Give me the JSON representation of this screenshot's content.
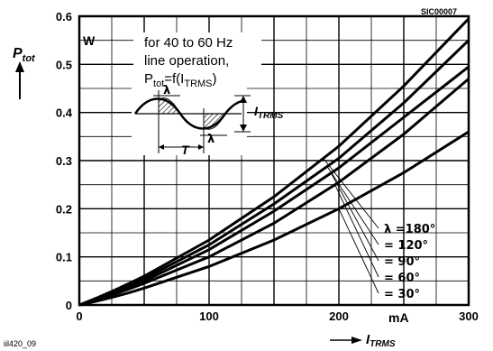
{
  "chart_data": {
    "type": "line",
    "code": "SIC00007",
    "footer_code": "iil420_09",
    "y_label": "P",
    "y_label_sub": "tot",
    "y_unit": "W",
    "x_label": "I",
    "x_label_sub": "TRMS",
    "x_unit": "mA",
    "xlim": [
      0,
      300
    ],
    "ylim": [
      0,
      0.6
    ],
    "x_ticks": [
      {
        "value": 0,
        "label": "0"
      },
      {
        "value": 100,
        "label": "100"
      },
      {
        "value": 200,
        "label": "200"
      },
      {
        "value": 300,
        "label": "300"
      }
    ],
    "y_ticks": [
      {
        "value": 0,
        "label": "0"
      },
      {
        "value": 0.1,
        "label": "0.1"
      },
      {
        "value": 0.2,
        "label": "0.2"
      },
      {
        "value": 0.3,
        "label": "0.3"
      },
      {
        "value": 0.4,
        "label": "0.4"
      },
      {
        "value": 0.5,
        "label": "0.5"
      },
      {
        "value": 0.6,
        "label": "0.6"
      }
    ],
    "annotation_lines": [
      "for 40 to 60 Hz",
      "line operation,"
    ],
    "annotation_formula": {
      "main": "P",
      "sub": "tot",
      "mid": "=f(I",
      "sub2": "TRMS",
      "end": ")"
    },
    "inset_labels": {
      "lambda": "λ",
      "lambda2": "λ",
      "period": "T",
      "current": "I",
      "current_sub": "TRMS"
    },
    "series": [
      {
        "name": "λ =180°",
        "x": [
          0,
          50,
          100,
          150,
          200,
          250,
          300
        ],
        "y": [
          0,
          0.06,
          0.135,
          0.225,
          0.33,
          0.455,
          0.595
        ]
      },
      {
        "name": "= 120°",
        "x": [
          0,
          50,
          100,
          150,
          200,
          250,
          300
        ],
        "y": [
          0,
          0.055,
          0.125,
          0.21,
          0.305,
          0.42,
          0.55
        ]
      },
      {
        "name": "=  90°",
        "x": [
          0,
          50,
          100,
          150,
          200,
          250,
          300
        ],
        "y": [
          0,
          0.05,
          0.115,
          0.195,
          0.285,
          0.39,
          0.495
        ]
      },
      {
        "name": "=  60°",
        "x": [
          0,
          50,
          100,
          150,
          200,
          250,
          300
        ],
        "y": [
          0,
          0.045,
          0.1,
          0.17,
          0.255,
          0.355,
          0.47
        ]
      },
      {
        "name": "=  30°",
        "x": [
          0,
          50,
          100,
          150,
          200,
          250,
          300
        ],
        "y": [
          0,
          0.035,
          0.08,
          0.135,
          0.2,
          0.275,
          0.36
        ]
      }
    ],
    "grid": true
  }
}
